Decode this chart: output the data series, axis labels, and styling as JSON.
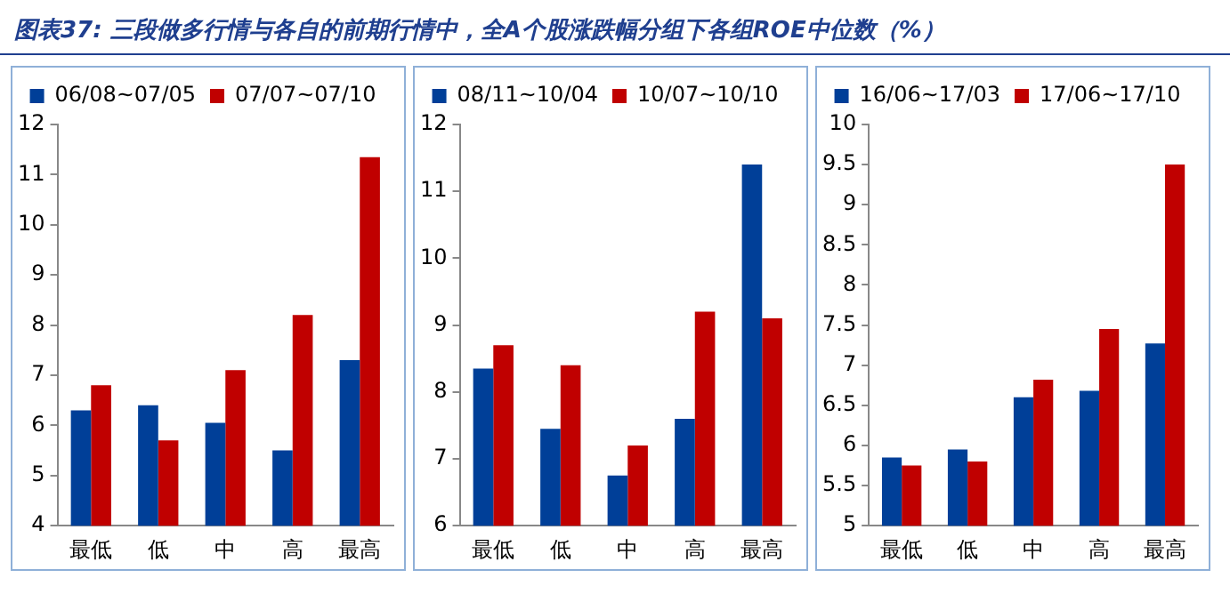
{
  "chart_data": [
    {
      "type": "bar",
      "title": "图表37: 三段做多行情与各自的前期行情中，全A个股涨跌幅分组下各组ROE中位数（%）",
      "categories": [
        "最低",
        "低",
        "中",
        "高",
        "最高"
      ],
      "series": [
        {
          "name": "06/08~07/05",
          "color": "#003f98",
          "values": [
            6.3,
            6.4,
            6.05,
            5.5,
            7.3
          ]
        },
        {
          "name": "07/07~07/10",
          "color": "#c00000",
          "values": [
            6.8,
            5.7,
            7.1,
            8.2,
            11.35
          ]
        }
      ],
      "ylim": [
        4,
        12
      ],
      "yticks": [
        4,
        5,
        6,
        7,
        8,
        9,
        10,
        11,
        12
      ],
      "grid": false,
      "legend": "top"
    },
    {
      "type": "bar",
      "categories": [
        "最低",
        "低",
        "中",
        "高",
        "最高"
      ],
      "series": [
        {
          "name": "08/11~10/04",
          "color": "#003f98",
          "values": [
            8.35,
            7.45,
            6.75,
            7.6,
            11.4
          ]
        },
        {
          "name": "10/07~10/10",
          "color": "#c00000",
          "values": [
            8.7,
            8.4,
            7.2,
            9.2,
            9.1
          ]
        }
      ],
      "ylim": [
        6,
        12
      ],
      "yticks": [
        6,
        7,
        8,
        9,
        10,
        11,
        12
      ],
      "grid": false,
      "legend": "top"
    },
    {
      "type": "bar",
      "categories": [
        "最低",
        "低",
        "中",
        "高",
        "最高"
      ],
      "series": [
        {
          "name": "16/06~17/03",
          "color": "#003f98",
          "values": [
            5.85,
            5.95,
            6.6,
            6.68,
            7.27
          ]
        },
        {
          "name": "17/06~17/10",
          "color": "#c00000",
          "values": [
            5.75,
            5.8,
            6.82,
            7.45,
            9.5
          ]
        }
      ],
      "ylim": [
        5,
        10
      ],
      "yticks": [
        5,
        5.5,
        6,
        6.5,
        7,
        7.5,
        8,
        8.5,
        9,
        9.5,
        10
      ],
      "grid": false,
      "legend": "top"
    }
  ]
}
